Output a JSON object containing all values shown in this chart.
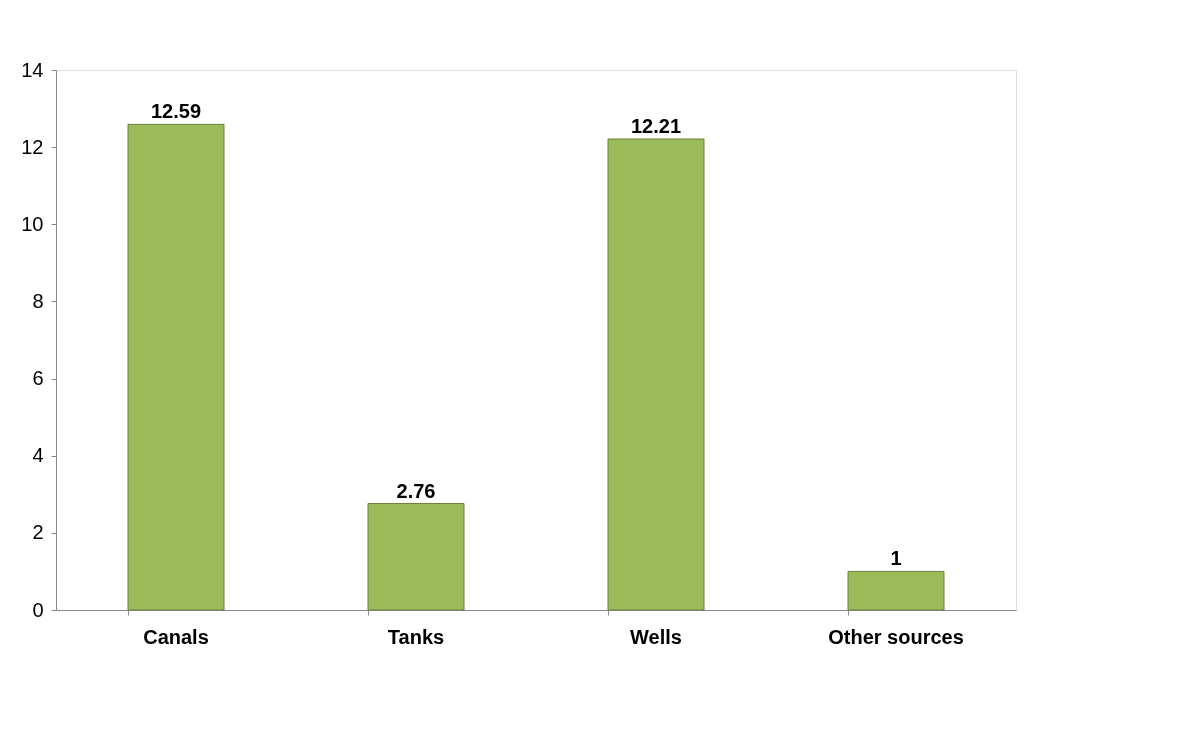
{
  "chart_data": {
    "type": "bar",
    "categories": [
      "Canals",
      "Tanks",
      "Wells",
      "Other sources"
    ],
    "values": [
      12.59,
      2.76,
      12.21,
      1
    ],
    "color": "#9bbb59",
    "ylim": [
      0,
      14
    ],
    "yticks": [
      0,
      2,
      4,
      6,
      8,
      10,
      12,
      14
    ],
    "data_labels": true,
    "grid": false
  }
}
